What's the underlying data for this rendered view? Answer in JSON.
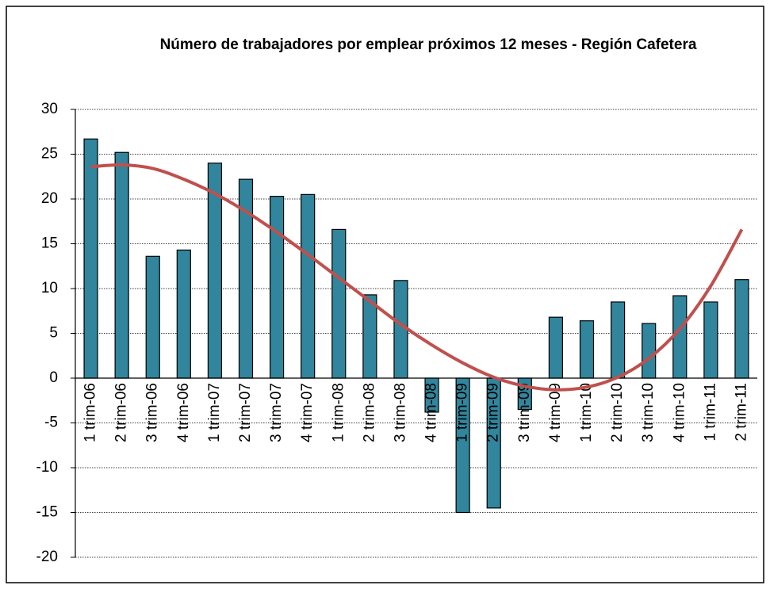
{
  "chart_data": {
    "type": "bar",
    "title": "Número de trabajadores por emplear próximos 12 meses - Región Cafetera",
    "categories": [
      "1 trim-06",
      "2 trim-06",
      "3 trim-06",
      "4 trim-06",
      "1 trim-07",
      "2 trim-07",
      "3 trim-07",
      "4 trim-07",
      "1 trim-08",
      "2 trim-08",
      "3 trim-08",
      "4 trim-08",
      "1 trim-09",
      "2 trim-09",
      "3 trim-09",
      "4 trim-09",
      "1 trim-10",
      "2 trim-10",
      "3 trim-10",
      "4 trim-10",
      "1 trim-11",
      "2 trim-11"
    ],
    "values": [
      26.7,
      25.2,
      13.6,
      14.3,
      24.0,
      22.2,
      20.3,
      20.5,
      16.6,
      9.3,
      10.9,
      -3.8,
      -15.0,
      -14.5,
      -3.5,
      6.8,
      6.4,
      8.5,
      6.1,
      9.2,
      8.5,
      11.0
    ],
    "color": "#31859c",
    "trendline": {
      "color": "#c0504d",
      "values": [
        23.6,
        23.8,
        23.4,
        22.2,
        20.6,
        18.6,
        16.3,
        13.8,
        11.2,
        8.6,
        6.0,
        3.7,
        1.7,
        0.1,
        -0.9,
        -1.3,
        -1.0,
        0.1,
        2.2,
        5.5,
        10.3,
        16.6
      ]
    },
    "ylim": [
      -20,
      30
    ],
    "yticks": [
      -20,
      -15,
      -10,
      -5,
      0,
      5,
      10,
      15,
      20,
      25,
      30
    ],
    "grid": true
  }
}
